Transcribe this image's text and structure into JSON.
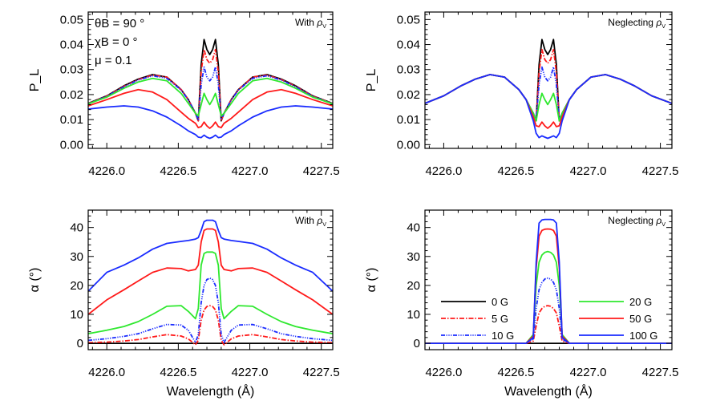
{
  "chart_data": [
    {
      "id": "tl",
      "type": "line",
      "ylabel": "P_L",
      "annotation": "With ρV",
      "params": [
        "θB = 90 °",
        "χB = 0 °",
        "μ = 0.1"
      ],
      "xlim": [
        4225.87,
        4227.58
      ],
      "ylim": [
        -0.0015,
        0.053
      ],
      "xticks": [
        "4226.0",
        "4226.5",
        "4227.0",
        "4227.5"
      ],
      "yticks": [
        "0.00",
        "0.01",
        "0.02",
        "0.03",
        "0.04",
        "0.05"
      ],
      "series": [
        {
          "name": "0 G",
          "values": [
            0.0165,
            0.0195,
            0.0235,
            0.0262,
            0.028,
            0.027,
            0.022,
            0.018,
            0.0125,
            0.0095,
            0.032,
            0.042,
            0.038,
            0.036,
            0.038,
            0.042,
            0.032,
            0.0095,
            0.0125,
            0.018,
            0.022,
            0.027,
            0.028,
            0.0262,
            0.0235,
            0.0195,
            0.0165
          ]
        },
        {
          "name": "5 G",
          "values": [
            0.0164,
            0.0194,
            0.0233,
            0.026,
            0.0278,
            0.027,
            0.022,
            0.018,
            0.0125,
            0.0095,
            0.029,
            0.038,
            0.034,
            0.0325,
            0.034,
            0.038,
            0.029,
            0.0095,
            0.0125,
            0.018,
            0.022,
            0.027,
            0.0278,
            0.026,
            0.0233,
            0.0194,
            0.0164
          ]
        },
        {
          "name": "10 G",
          "values": [
            0.0163,
            0.0193,
            0.0231,
            0.0258,
            0.0275,
            0.0265,
            0.0218,
            0.0178,
            0.0125,
            0.01,
            0.024,
            0.031,
            0.027,
            0.0255,
            0.027,
            0.031,
            0.024,
            0.01,
            0.0125,
            0.0178,
            0.0218,
            0.0265,
            0.0275,
            0.0258,
            0.0231,
            0.0193,
            0.0163
          ]
        },
        {
          "name": "20 G",
          "values": [
            0.0163,
            0.019,
            0.0225,
            0.025,
            0.0265,
            0.0255,
            0.0205,
            0.0165,
            0.0125,
            0.0115,
            0.016,
            0.0205,
            0.018,
            0.016,
            0.018,
            0.0205,
            0.016,
            0.0115,
            0.0125,
            0.0165,
            0.0205,
            0.0255,
            0.0265,
            0.025,
            0.0225,
            0.019,
            0.0163
          ]
        },
        {
          "name": "50 G",
          "values": [
            0.0155,
            0.018,
            0.0205,
            0.022,
            0.021,
            0.018,
            0.013,
            0.0105,
            0.0085,
            0.0068,
            0.0072,
            0.009,
            0.0075,
            0.0065,
            0.0075,
            0.009,
            0.0072,
            0.0068,
            0.0085,
            0.0105,
            0.013,
            0.018,
            0.021,
            0.022,
            0.0205,
            0.018,
            0.0155
          ]
        },
        {
          "name": "100 G",
          "values": [
            0.0142,
            0.015,
            0.0155,
            0.015,
            0.0135,
            0.011,
            0.0075,
            0.0055,
            0.004,
            0.003,
            0.0028,
            0.0038,
            0.003,
            0.0025,
            0.003,
            0.0038,
            0.0028,
            0.003,
            0.004,
            0.0055,
            0.0075,
            0.011,
            0.0135,
            0.015,
            0.0155,
            0.015,
            0.0142
          ]
        }
      ]
    },
    {
      "id": "tr",
      "type": "line",
      "ylabel": "P_L",
      "annotation": "Neglecting ρV",
      "xlim": [
        4225.87,
        4227.58
      ],
      "ylim": [
        -0.0015,
        0.053
      ],
      "xticks": [
        "4226.0",
        "4226.5",
        "4227.0",
        "4227.5"
      ],
      "yticks": [
        "0.00",
        "0.01",
        "0.02",
        "0.03",
        "0.04",
        "0.05"
      ],
      "series": [
        {
          "name": "0 G",
          "values": [
            0.0165,
            0.0195,
            0.0235,
            0.0262,
            0.028,
            0.027,
            0.022,
            0.018,
            0.0125,
            0.0095,
            0.032,
            0.042,
            0.038,
            0.036,
            0.038,
            0.042,
            0.032,
            0.0095,
            0.0125,
            0.018,
            0.022,
            0.027,
            0.028,
            0.0262,
            0.0235,
            0.0195,
            0.0165
          ]
        },
        {
          "name": "5 G",
          "values": [
            0.0165,
            0.0195,
            0.0235,
            0.0262,
            0.028,
            0.027,
            0.022,
            0.018,
            0.0125,
            0.0095,
            0.029,
            0.038,
            0.034,
            0.0325,
            0.034,
            0.038,
            0.029,
            0.0095,
            0.0125,
            0.018,
            0.022,
            0.027,
            0.028,
            0.0262,
            0.0235,
            0.0195,
            0.0165
          ]
        },
        {
          "name": "10 G",
          "values": [
            0.0165,
            0.0195,
            0.0235,
            0.0262,
            0.028,
            0.027,
            0.022,
            0.018,
            0.0125,
            0.01,
            0.024,
            0.031,
            0.027,
            0.0255,
            0.027,
            0.031,
            0.024,
            0.01,
            0.0125,
            0.018,
            0.022,
            0.027,
            0.028,
            0.0262,
            0.0235,
            0.0195,
            0.0165
          ]
        },
        {
          "name": "20 G",
          "values": [
            0.0165,
            0.0195,
            0.0235,
            0.0262,
            0.028,
            0.027,
            0.022,
            0.018,
            0.0125,
            0.0095,
            0.016,
            0.0205,
            0.018,
            0.016,
            0.018,
            0.0205,
            0.016,
            0.0095,
            0.0125,
            0.018,
            0.022,
            0.027,
            0.028,
            0.0262,
            0.0235,
            0.0195,
            0.0165
          ]
        },
        {
          "name": "50 G",
          "values": [
            0.0165,
            0.0195,
            0.0235,
            0.0262,
            0.028,
            0.027,
            0.022,
            0.018,
            0.011,
            0.0075,
            0.0072,
            0.009,
            0.0075,
            0.0065,
            0.0075,
            0.009,
            0.0072,
            0.0075,
            0.011,
            0.018,
            0.022,
            0.027,
            0.028,
            0.0262,
            0.0235,
            0.0195,
            0.0165
          ]
        },
        {
          "name": "100 G",
          "values": [
            0.0165,
            0.0195,
            0.0235,
            0.0262,
            0.028,
            0.027,
            0.022,
            0.018,
            0.0095,
            0.0045,
            0.0028,
            0.0035,
            0.003,
            0.0025,
            0.003,
            0.0035,
            0.0028,
            0.0045,
            0.0095,
            0.018,
            0.022,
            0.027,
            0.028,
            0.0262,
            0.0235,
            0.0195,
            0.0165
          ]
        }
      ]
    },
    {
      "id": "bl",
      "type": "line",
      "ylabel": "α (°)",
      "xlabel": "Wavelength (Å)",
      "annotation": "With ρV",
      "xlim": [
        4225.87,
        4227.58
      ],
      "ylim": [
        -2.2,
        46
      ],
      "xticks": [
        "4226.0",
        "4226.5",
        "4227.0",
        "4227.5"
      ],
      "yticks": [
        "0",
        "10",
        "20",
        "30",
        "40"
      ],
      "series": [
        {
          "name": "0 G",
          "values": [
            0,
            0,
            0,
            0,
            0,
            0,
            0,
            0,
            0,
            0,
            0,
            0,
            0,
            0,
            0,
            0,
            0,
            0,
            0,
            0,
            0,
            0,
            0,
            0,
            0,
            0,
            0
          ]
        },
        {
          "name": "5 G",
          "values": [
            0.2,
            0.4,
            0.8,
            1.3,
            2.2,
            3,
            2.5,
            1.5,
            -0.5,
            1,
            8,
            11.5,
            12.7,
            13,
            12.7,
            11.5,
            8,
            1,
            -0.5,
            1.5,
            2.5,
            3,
            2.2,
            1.3,
            0.8,
            0.4,
            0.2
          ]
        },
        {
          "name": "10 G",
          "values": [
            1,
            1.6,
            2.4,
            3.3,
            5,
            6.5,
            6.3,
            4.5,
            0.3,
            3,
            14,
            20,
            22,
            22.5,
            22,
            20,
            14,
            3,
            0.3,
            4.5,
            6.3,
            6.5,
            5,
            3.3,
            2.4,
            1.6,
            1
          ]
        },
        {
          "name": "20 G",
          "values": [
            3.3,
            4.5,
            5.8,
            7.5,
            10,
            12.8,
            13,
            11,
            8.5,
            12,
            27,
            31,
            31.5,
            31.5,
            31.5,
            31,
            27,
            12,
            8.5,
            11,
            13,
            12.8,
            10,
            7.5,
            5.8,
            4.5,
            3.3
          ]
        },
        {
          "name": "50 G",
          "values": [
            10,
            15,
            18.5,
            21.5,
            24.5,
            26,
            25.8,
            25,
            25.5,
            27,
            35,
            39,
            39.5,
            39.5,
            39.5,
            39,
            35,
            27,
            25.5,
            25,
            25.8,
            26,
            24.5,
            21.5,
            18.5,
            15,
            10
          ]
        },
        {
          "name": "100 G",
          "values": [
            18,
            24.5,
            27,
            29.5,
            32.5,
            34.5,
            35.2,
            35.5,
            36,
            36.5,
            39,
            42,
            42.5,
            42.5,
            42.5,
            42,
            39,
            36.5,
            36,
            35.5,
            35.2,
            34.5,
            32.5,
            29.5,
            27,
            24.5,
            18
          ]
        }
      ]
    },
    {
      "id": "br",
      "type": "line",
      "ylabel": "α (°)",
      "xlabel": "Wavelength (Å)",
      "annotation": "Neglecting ρV",
      "xlim": [
        4225.87,
        4227.58
      ],
      "ylim": [
        -2.2,
        46
      ],
      "xticks": [
        "4226.0",
        "4226.5",
        "4227.0",
        "4227.5"
      ],
      "yticks": [
        "0",
        "10",
        "20",
        "30",
        "40"
      ],
      "series": [
        {
          "name": "0 G",
          "values": [
            0,
            0,
            0,
            0,
            0,
            0,
            0,
            0,
            0,
            0,
            0,
            0,
            0,
            0,
            0,
            0,
            0,
            0,
            0,
            0,
            0,
            0,
            0,
            0,
            0,
            0,
            0
          ]
        },
        {
          "name": "5 G",
          "values": [
            0,
            0,
            0,
            0,
            0,
            0,
            0,
            0,
            0.8,
            6,
            10.5,
            12,
            12.8,
            13,
            12.8,
            12,
            10.5,
            6,
            0.8,
            0,
            0,
            0,
            0,
            0,
            0,
            0,
            0
          ]
        },
        {
          "name": "10 G",
          "values": [
            0,
            0,
            0,
            0,
            0,
            0,
            0,
            0,
            1.5,
            12,
            18.5,
            21,
            22.2,
            22.5,
            22.2,
            21,
            18.5,
            12,
            1.5,
            0,
            0,
            0,
            0,
            0,
            0,
            0,
            0
          ]
        },
        {
          "name": "20 G",
          "values": [
            0,
            0,
            0,
            0,
            0,
            0,
            0,
            0,
            3,
            20,
            28,
            30.5,
            31.4,
            31.7,
            31.4,
            30.5,
            28,
            20,
            3,
            0,
            0,
            0,
            0,
            0,
            0,
            0,
            0
          ]
        },
        {
          "name": "50 G",
          "values": [
            0,
            0,
            0,
            0,
            0,
            0,
            0,
            0,
            2.5,
            26,
            37,
            39,
            39.4,
            39.5,
            39.4,
            39,
            37,
            26,
            2.5,
            0,
            0,
            0,
            0,
            0,
            0,
            0,
            0
          ]
        },
        {
          "name": "100 G",
          "values": [
            0,
            0,
            0,
            0,
            0,
            0,
            0,
            0,
            2,
            28,
            41.5,
            42.6,
            42.8,
            42.8,
            42.8,
            42.6,
            41.5,
            28,
            2,
            0,
            0,
            0,
            0,
            0,
            0,
            0,
            0
          ]
        }
      ]
    }
  ],
  "x": [
    4225.87,
    4226.0,
    4226.12,
    4226.22,
    4226.32,
    4226.42,
    4226.52,
    4226.57,
    4226.62,
    4226.64,
    4226.66,
    4226.68,
    4226.7,
    4226.72,
    4226.74,
    4226.76,
    4226.78,
    4226.8,
    4226.82,
    4226.87,
    4226.92,
    4227.02,
    4227.12,
    4227.22,
    4227.32,
    4227.44,
    4227.58
  ],
  "series_styles": {
    "0 G": {
      "color": "#000000",
      "dash": "solid"
    },
    "5 G": {
      "color": "#ff1a1a",
      "dash": "dash-dot"
    },
    "10 G": {
      "color": "#1a2cff",
      "dash": "dash-dot-dot-dot"
    },
    "20 G": {
      "color": "#2ee82e",
      "dash": "solid"
    },
    "50 G": {
      "color": "#ff1a1a",
      "dash": "solid"
    },
    "100 G": {
      "color": "#1a2cff",
      "dash": "solid"
    }
  },
  "legend": {
    "placement": "bottom-right panel, lower",
    "entries": [
      "0 G",
      "5 G",
      "10 G",
      "20 G",
      "50 G",
      "100 G"
    ]
  }
}
